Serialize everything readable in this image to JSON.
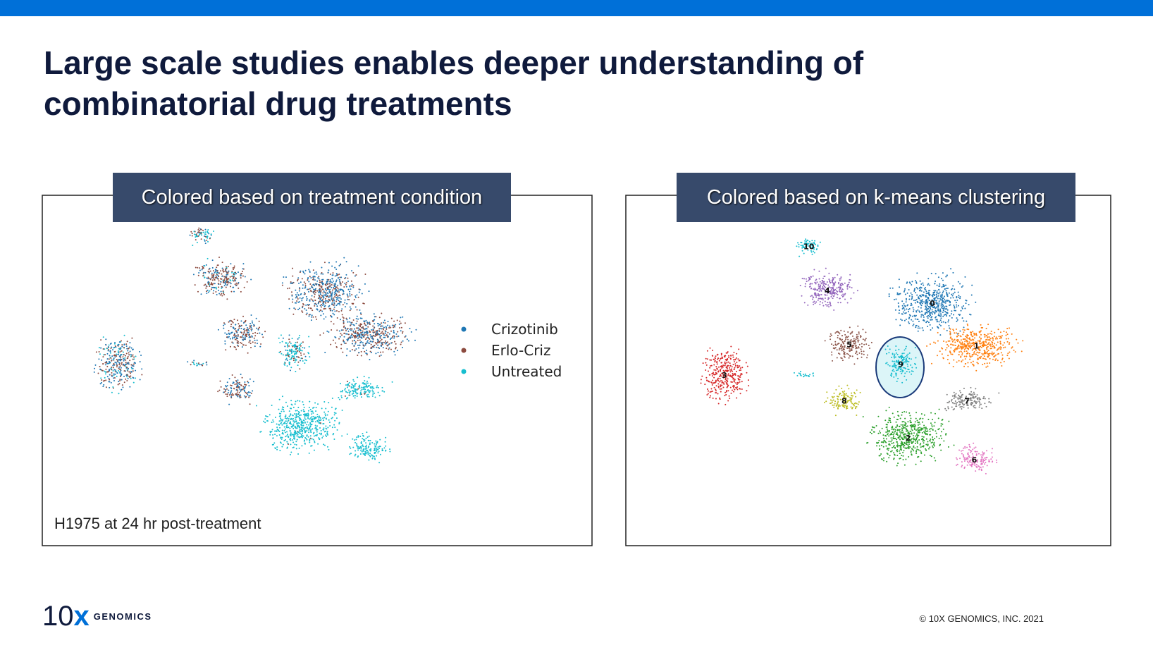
{
  "header": {
    "title": [
      "Large scale studies enables deeper understanding of",
      "combinatorial drug treatments"
    ]
  },
  "left_panel": {
    "heading": "Colored based on treatment condition",
    "caption": "H1975 at 24 hr post-treatment",
    "legend": [
      {
        "label": "Crizotinib",
        "color": "#1f77b4"
      },
      {
        "label": "Erlo-Criz",
        "color": "#8c4b3f"
      },
      {
        "label": "Untreated",
        "color": "#17becf"
      }
    ]
  },
  "right_panel": {
    "heading": "Colored based on k-means clustering",
    "clusters": [
      {
        "label": "0",
        "color": "#1f77b4"
      },
      {
        "label": "1",
        "color": "#ff7f0e"
      },
      {
        "label": "2",
        "color": "#2ca02c"
      },
      {
        "label": "3",
        "color": "#d62728"
      },
      {
        "label": "4",
        "color": "#9467bd"
      },
      {
        "label": "5",
        "color": "#8c564b"
      },
      {
        "label": "6",
        "color": "#e377c2"
      },
      {
        "label": "7",
        "color": "#7f7f7f"
      },
      {
        "label": "8",
        "color": "#bcbd22"
      },
      {
        "label": "9",
        "color": "#17becf"
      },
      {
        "label": "10",
        "color": "#17becf"
      }
    ]
  },
  "footer": {
    "logo_number": "10",
    "logo_x": "x",
    "logo_word": "GENOMICS",
    "copyright": "© 10X GENOMICS, INC. 2021"
  }
}
